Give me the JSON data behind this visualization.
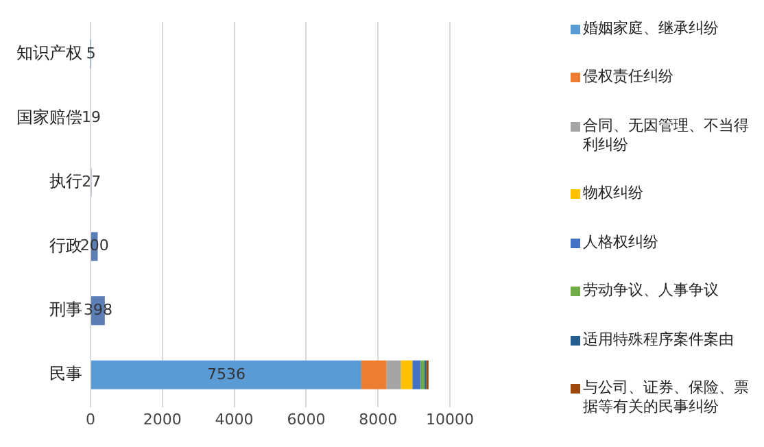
{
  "chart_data": {
    "type": "bar",
    "orientation": "horizontal",
    "stacked": true,
    "categories": [
      "知识产权",
      "国家赔偿",
      "执行",
      "行政",
      "刑事",
      "民事"
    ],
    "series": [
      {
        "color": "#5b7fb5",
        "values": [
          5,
          19,
          27,
          200,
          398,
          null
        ],
        "value_labels": [
          "5",
          "19",
          "27",
          "200",
          "398",
          null
        ]
      },
      {
        "name": "婚姻家庭、继承纠纷",
        "color": "#5b9bd5",
        "values": [
          null,
          null,
          null,
          null,
          null,
          7536
        ],
        "value_labels": [
          null,
          null,
          null,
          null,
          null,
          "7536"
        ]
      },
      {
        "name": "侵权责任纠纷",
        "color": "#ed7d31",
        "values": [
          null,
          null,
          null,
          null,
          null,
          700
        ]
      },
      {
        "name": "合同、无因管理、不当得利纠纷",
        "color": "#a5a5a5",
        "values": [
          null,
          null,
          null,
          null,
          null,
          400
        ]
      },
      {
        "name": "物权纠纷",
        "color": "#ffc000",
        "values": [
          null,
          null,
          null,
          null,
          null,
          320
        ]
      },
      {
        "name": "人格权纠纷",
        "color": "#4472c4",
        "values": [
          null,
          null,
          null,
          null,
          null,
          230
        ]
      },
      {
        "name": "劳动争议、人事争议",
        "color": "#70ad47",
        "values": [
          null,
          null,
          null,
          null,
          null,
          110
        ]
      },
      {
        "name": "适用特殊程序案件案由",
        "color": "#255e91",
        "values": [
          null,
          null,
          null,
          null,
          null,
          50
        ]
      },
      {
        "name": "与公司、证券、保险、票据等有关的民事纠纷",
        "color": "#9e480e",
        "values": [
          null,
          null,
          null,
          null,
          null,
          60
        ]
      }
    ],
    "xlim": [
      0,
      10000
    ],
    "xticks": [
      0,
      2000,
      4000,
      6000,
      8000,
      10000
    ],
    "grid": "x",
    "legend": "right"
  }
}
